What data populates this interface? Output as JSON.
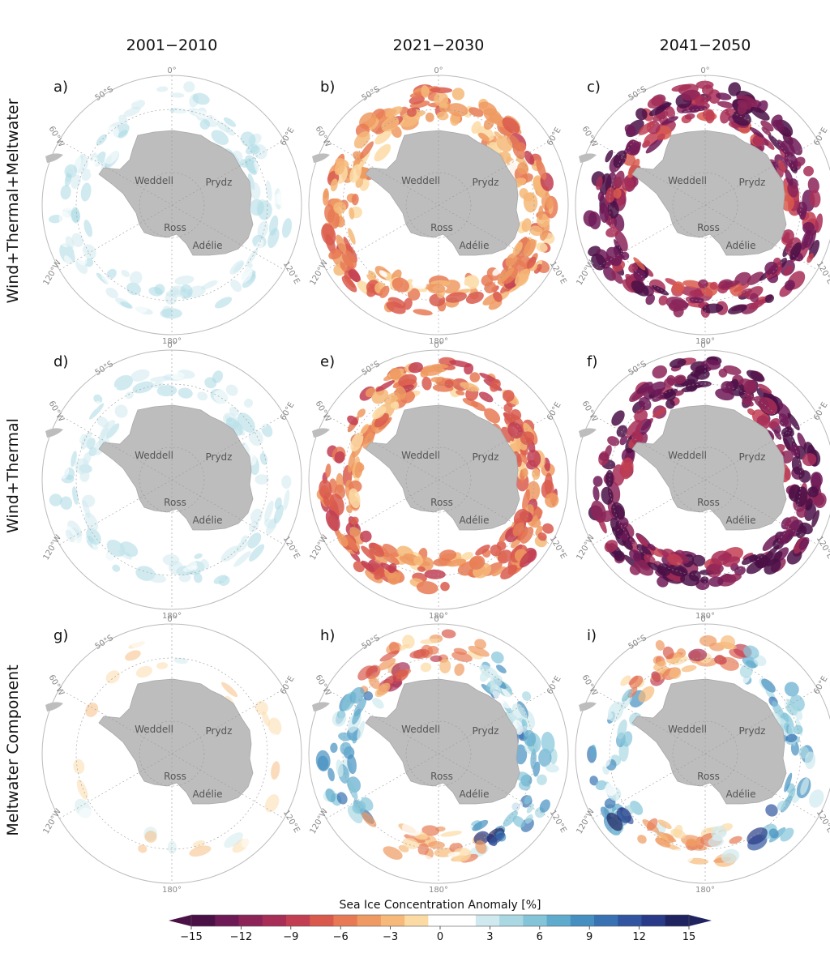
{
  "chart_data": {
    "type": "heatmap",
    "projection": "south-polar-stereographic",
    "columns": [
      "2001−2010",
      "2021−2030",
      "2041−2050"
    ],
    "rows": [
      "Wind+Thermal+Meltwater",
      "Wind+Thermal",
      "Meltwater Component"
    ],
    "panels": [
      {
        "label": "a)",
        "row": 0,
        "col": 0,
        "mean_anomaly": 1.5,
        "pattern": "weak-positive"
      },
      {
        "label": "b)",
        "row": 0,
        "col": 1,
        "mean_anomaly": -5,
        "pattern": "moderate-negative"
      },
      {
        "label": "c)",
        "row": 0,
        "col": 2,
        "mean_anomaly": -12,
        "pattern": "strong-negative"
      },
      {
        "label": "d)",
        "row": 1,
        "col": 0,
        "mean_anomaly": 1.5,
        "pattern": "weak-positive"
      },
      {
        "label": "e)",
        "row": 1,
        "col": 1,
        "mean_anomaly": -6,
        "pattern": "moderate-negative"
      },
      {
        "label": "f)",
        "row": 1,
        "col": 2,
        "mean_anomaly": -13,
        "pattern": "strong-negative"
      },
      {
        "label": "g)",
        "row": 2,
        "col": 0,
        "mean_anomaly": 0,
        "pattern": "near-zero"
      },
      {
        "label": "h)",
        "row": 2,
        "col": 1,
        "mean_anomaly": 3,
        "pattern": "mixed"
      },
      {
        "label": "i)",
        "row": 2,
        "col": 2,
        "mean_anomaly": 3,
        "pattern": "mixed"
      }
    ],
    "grid_labels": {
      "top": "0°",
      "bottom": "180°",
      "lat": "50°S",
      "w60": "60°W",
      "e60": "60°E",
      "w120": "120°W",
      "e120": "120°E"
    },
    "regions": [
      "Weddell",
      "Prydz",
      "Ross",
      "Adélie"
    ],
    "colorbar": {
      "label": "Sea Ice Concentration Anomaly [%]",
      "vmin": -15,
      "vmax": 15,
      "step": 1.875,
      "extend": "both",
      "ticks": [
        "−15",
        "−12",
        "−9",
        "−6",
        "−3",
        "0",
        "3",
        "6",
        "9",
        "12",
        "15"
      ],
      "colors": [
        "#4a1147",
        "#6e1a57",
        "#8c2458",
        "#a72e57",
        "#c23e52",
        "#d95a4d",
        "#e77a55",
        "#ef9a62",
        "#f6b979",
        "#fbdaa4",
        "#ffffff",
        "#ffffff",
        "#cfe9ee",
        "#a9d8e3",
        "#83c4d8",
        "#5fabcd",
        "#4590c1",
        "#3872b2",
        "#3155a0",
        "#283a88",
        "#1f2460"
      ]
    }
  }
}
